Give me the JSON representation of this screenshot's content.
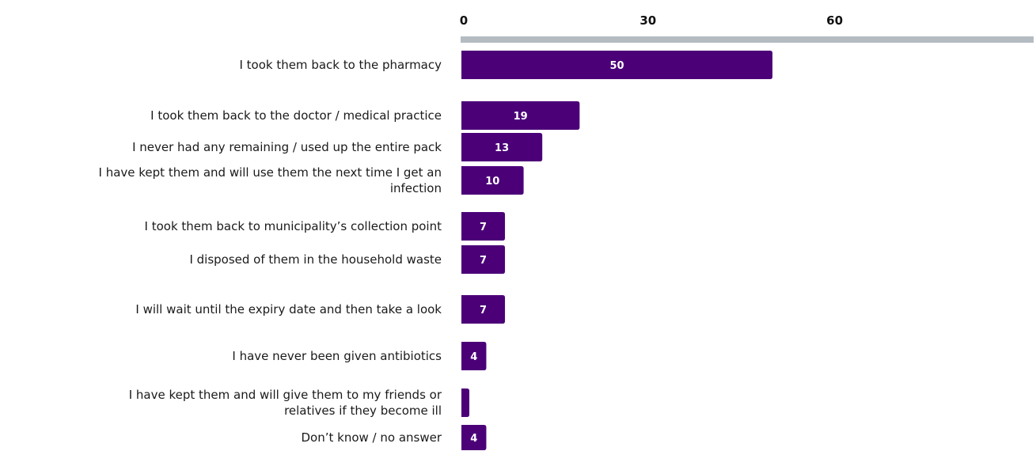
{
  "chart_data": {
    "type": "bar",
    "orientation": "horizontal",
    "categories": [
      [
        "I took them back to the pharmacy"
      ],
      [
        "I took them back to the doctor / medical practice"
      ],
      [
        "I never had any remaining / used up the entire pack"
      ],
      [
        "I have kept them and will use them the next time I get an",
        "infection"
      ],
      [
        "I took them back to municipality’s collection point"
      ],
      [
        "I disposed of them in the household waste"
      ],
      [
        "I will wait until the expiry date and then take a look"
      ],
      [
        "I have never been given antibiotics"
      ],
      [
        "I have kept them and will give them to my friends or",
        "relatives if they become ill"
      ],
      [
        "Don’t know / no answer"
      ]
    ],
    "values": [
      50,
      19,
      13,
      10,
      7,
      7,
      7,
      4,
      1,
      4
    ],
    "data_labels": [
      "50",
      "19",
      "13",
      "10",
      "7",
      "7",
      "7",
      "4",
      "",
      "4"
    ],
    "xticks": [
      0,
      30,
      60
    ],
    "xlim": [
      0,
      80
    ],
    "bar_color": "#4b0078",
    "axis_color": "#b4bcc2",
    "title": "",
    "xlabel": "",
    "ylabel": ""
  }
}
